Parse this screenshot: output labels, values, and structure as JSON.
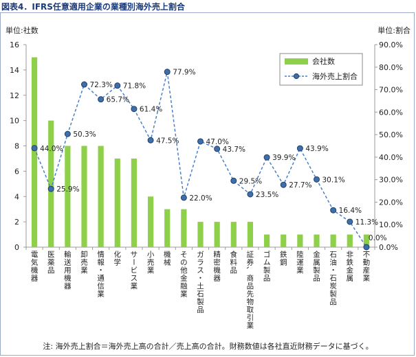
{
  "figure": {
    "title": "図表4．IFRS任意適用企業の業種別海外売上割合",
    "note": "注: 海外売上割合＝海外売上高の合計／売上高の合計。財務数値は各社直近財務データに基づく。"
  },
  "chart_data": {
    "type": "bar",
    "title": "",
    "categories": [
      "電気機器",
      "医薬品",
      "輸送用機器",
      "卸売業",
      "情報・通信業",
      "化学",
      "サービス業",
      "小売業",
      "機械",
      "その他金融業",
      "ガラス・土石製品",
      "精密機器",
      "食料品",
      "証券、商品先物取引業",
      "ゴム製品",
      "鉄鋼",
      "陸運業",
      "金属製品",
      "石油・石炭製品",
      "非鉄金属",
      "不動産業"
    ],
    "series": [
      {
        "name": "会社数",
        "type": "bar",
        "axis": "left",
        "color": "#8fd04a",
        "values": [
          15,
          10,
          8,
          8,
          8,
          7,
          7,
          4,
          3,
          3,
          2,
          2,
          2,
          2,
          1,
          1,
          1,
          1,
          1,
          1,
          1
        ]
      },
      {
        "name": "海外売上割合",
        "type": "line",
        "axis": "right",
        "color": "#4a7fc8",
        "values": [
          44.0,
          25.9,
          50.3,
          72.3,
          65.7,
          71.8,
          61.4,
          47.5,
          77.9,
          22.0,
          47.0,
          43.7,
          29.5,
          23.5,
          39.9,
          27.7,
          43.9,
          30.1,
          16.4,
          11.3,
          0.0
        ],
        "labels": [
          "44.0%",
          "25.9%",
          "50.3%",
          "72.3%",
          "65.7%",
          "71.8%",
          "61.4%",
          "47.5%",
          "77.9%",
          "22.0%",
          "47.0%",
          "43.7%",
          "29.5%",
          "23.5%",
          "39.9%",
          "27.7%",
          "43.9%",
          "30.1%",
          "16.4%",
          "11.3%",
          "0.0%"
        ]
      }
    ],
    "y_left": {
      "label": "単位:社数",
      "min": 0,
      "max": 16,
      "ticks": [
        "0",
        "2",
        "4",
        "6",
        "8",
        "10",
        "12",
        "14",
        "16"
      ]
    },
    "y_right": {
      "label": "単位:割合",
      "min": 0,
      "max": 90,
      "ticks": [
        "0.0%",
        "10.0%",
        "20.0%",
        "30.0%",
        "40.0%",
        "50.0%",
        "60.0%",
        "70.0%",
        "80.0%",
        "90.0%"
      ]
    },
    "grid": false,
    "legend": "top-right"
  }
}
